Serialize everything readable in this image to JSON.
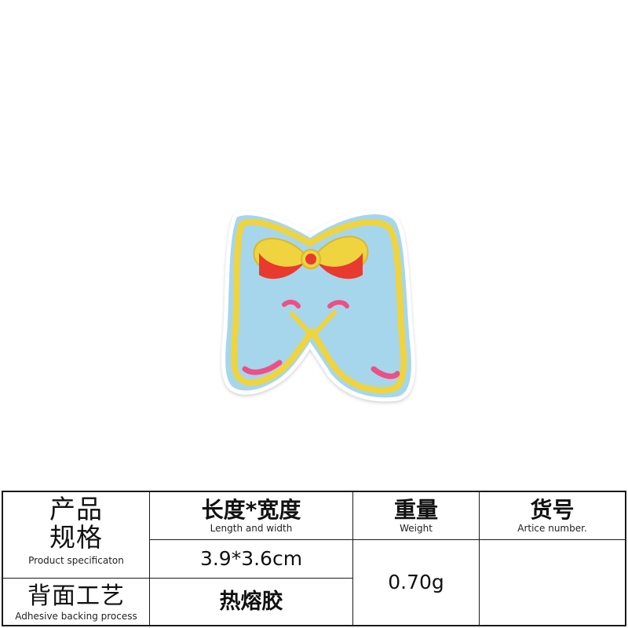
{
  "spec_table": {
    "product_spec_zh_line1": "产品",
    "product_spec_zh_line2": "规格",
    "product_spec_en": "Product specificaton",
    "length_width_zh": "长度*宽度",
    "length_width_en": "Length and width",
    "length_width_value": "3.9*3.6cm",
    "weight_zh": "重量",
    "weight_en": "Weight",
    "weight_value": "0.70g",
    "article_zh": "货号",
    "article_en": "Artice number.",
    "article_value": "",
    "backing_zh": "背面工艺",
    "backing_en": "Adhesive backing process",
    "backing_value": "热熔胶"
  },
  "colors": {
    "felt": "#a6d6ec",
    "outline": "#efd43f",
    "bow_red": "#e83a2e",
    "accent_pink": "#ee4f86"
  }
}
